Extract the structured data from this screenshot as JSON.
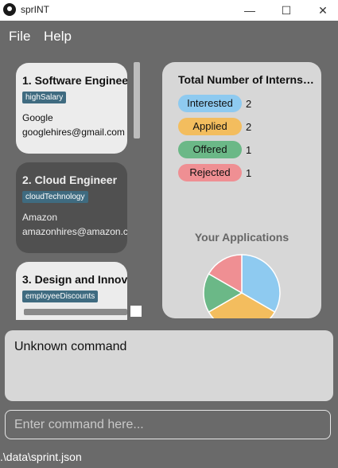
{
  "window": {
    "title": "sprINT",
    "minimize": "—",
    "maximize": "☐",
    "close": "✕"
  },
  "menu": {
    "file": "File",
    "help": "Help"
  },
  "applications": [
    {
      "index": "1.",
      "role": "Software Engineer",
      "tag": "highSalary",
      "company": "Google",
      "email": "googlehires@gmail.com"
    },
    {
      "index": "2.",
      "role": "Cloud Engineer",
      "tag": "cloudTechnology",
      "company": "Amazon",
      "email": "amazonhires@amazon.com"
    },
    {
      "index": "3.",
      "role": "Design and Innovation",
      "tag": "employeeDiscounts",
      "company": "",
      "email": ""
    }
  ],
  "stats": {
    "title": "Total Number of Internships",
    "items": [
      {
        "label": "Interested",
        "count": "2",
        "color": "#8ecaf0"
      },
      {
        "label": "Applied",
        "count": "2",
        "color": "#f3bd5e"
      },
      {
        "label": "Offered",
        "count": "1",
        "color": "#6bb887"
      },
      {
        "label": "Rejected",
        "count": "1",
        "color": "#ef8f93"
      }
    ],
    "chart_title": "Your Applications"
  },
  "chart_data": {
    "type": "pie",
    "title": "Your Applications",
    "categories": [
      "Interested",
      "Applied",
      "Offered",
      "Rejected"
    ],
    "values": [
      2,
      2,
      1,
      1
    ],
    "colors": [
      "#8ecaf0",
      "#f3bd5e",
      "#6bb887",
      "#ef8f93"
    ]
  },
  "result": {
    "text": "Unknown command"
  },
  "command": {
    "placeholder": "Enter command here..."
  },
  "status": {
    "path": ".\\data\\sprint.json"
  }
}
